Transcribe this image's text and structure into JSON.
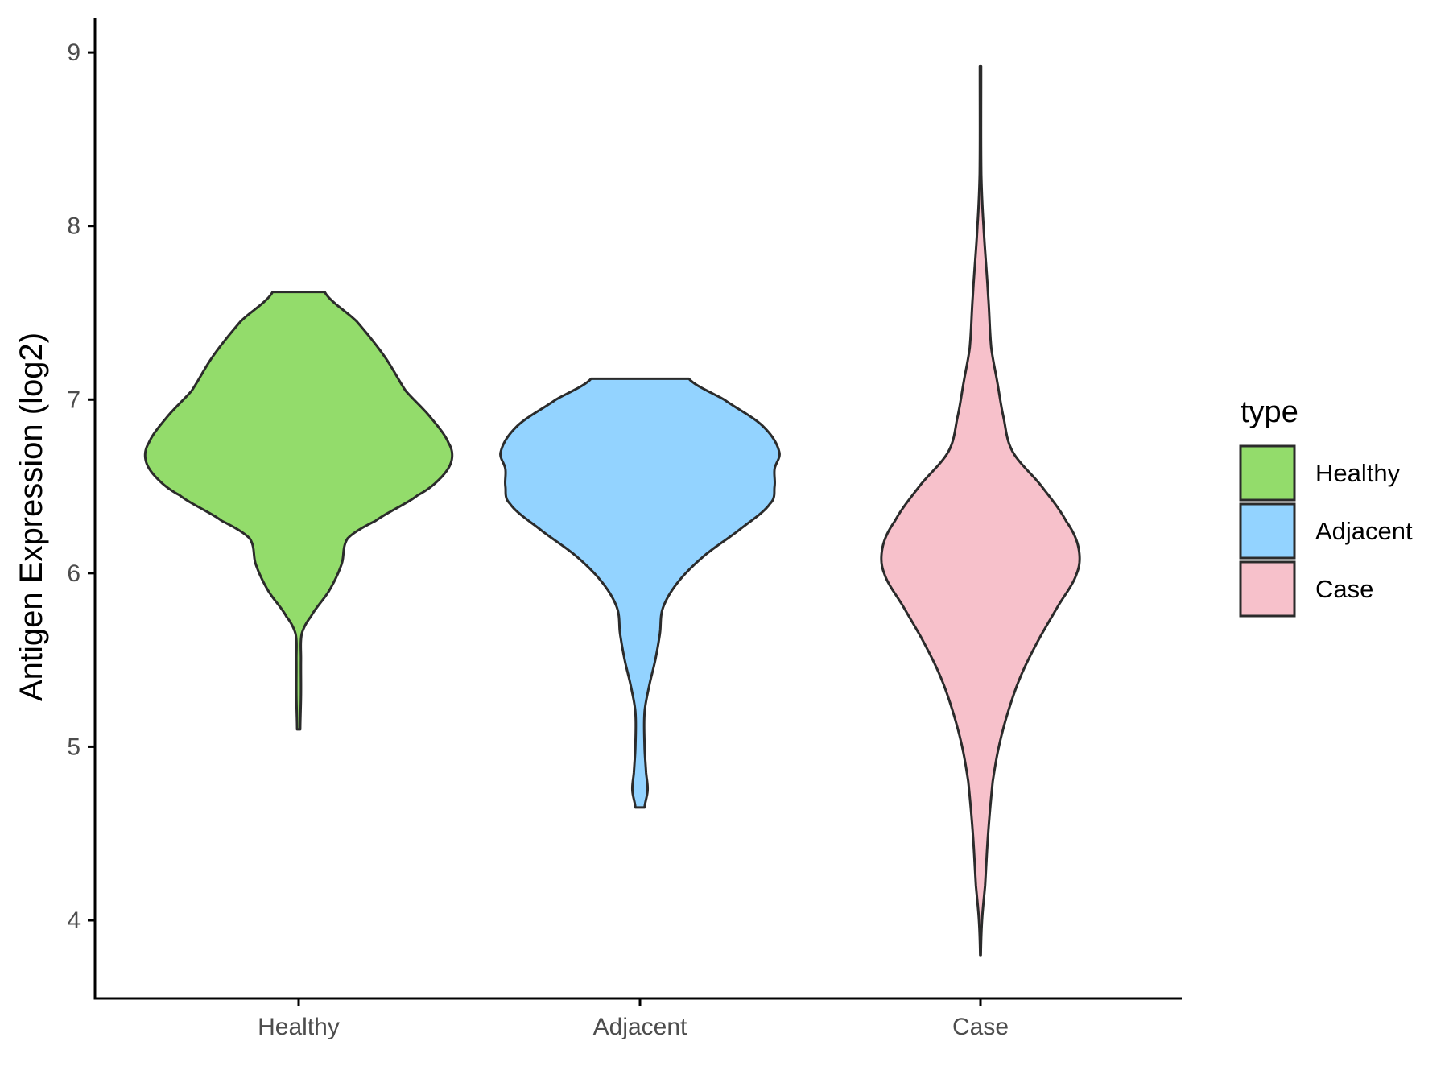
{
  "chart_data": {
    "type": "violin",
    "title": "",
    "xlabel": "",
    "ylabel": "Antigen Expression (log2)",
    "ylim": [
      3.55,
      9.2
    ],
    "y_ticks": [
      4,
      5,
      6,
      7,
      8,
      9
    ],
    "y_tick_labels": [
      "4",
      "5",
      "6",
      "7",
      "8",
      "9"
    ],
    "categories": [
      "Healthy",
      "Adjacent",
      "Case"
    ],
    "grid": false,
    "legend": {
      "title": "type",
      "placement": "right",
      "entries": [
        "Healthy",
        "Adjacent",
        "Case"
      ]
    },
    "colors": {
      "Healthy": "#93dc6b",
      "Adjacent": "#93d3ff",
      "Case": "#f7c1cb",
      "outline": "#2b2b2b",
      "axis": "#000000"
    },
    "series": [
      {
        "category": "Healthy",
        "min": 5.1,
        "max": 7.62,
        "density_profile": [
          [
            5.1,
            0.01
          ],
          [
            5.3,
            0.015
          ],
          [
            5.5,
            0.015
          ],
          [
            5.65,
            0.02
          ],
          [
            5.75,
            0.08
          ],
          [
            5.9,
            0.2
          ],
          [
            6.05,
            0.28
          ],
          [
            6.2,
            0.32
          ],
          [
            6.3,
            0.5
          ],
          [
            6.45,
            0.78
          ],
          [
            6.55,
            0.93
          ],
          [
            6.65,
            1.0
          ],
          [
            6.75,
            0.98
          ],
          [
            6.9,
            0.86
          ],
          [
            7.05,
            0.7
          ],
          [
            7.25,
            0.56
          ],
          [
            7.45,
            0.38
          ],
          [
            7.62,
            0.17
          ]
        ]
      },
      {
        "category": "Adjacent",
        "min": 4.65,
        "max": 7.12,
        "density_profile": [
          [
            4.65,
            0.03
          ],
          [
            4.75,
            0.05
          ],
          [
            4.85,
            0.04
          ],
          [
            5.0,
            0.03
          ],
          [
            5.2,
            0.03
          ],
          [
            5.35,
            0.06
          ],
          [
            5.5,
            0.1
          ],
          [
            5.65,
            0.13
          ],
          [
            5.8,
            0.15
          ],
          [
            5.95,
            0.25
          ],
          [
            6.1,
            0.42
          ],
          [
            6.25,
            0.65
          ],
          [
            6.4,
            0.85
          ],
          [
            6.5,
            0.88
          ],
          [
            6.6,
            0.88
          ],
          [
            6.7,
            0.91
          ],
          [
            6.85,
            0.8
          ],
          [
            7.0,
            0.55
          ],
          [
            7.12,
            0.32
          ]
        ]
      },
      {
        "category": "Case",
        "min": 3.8,
        "max": 8.92,
        "density_profile": [
          [
            3.8,
            0.002
          ],
          [
            4.0,
            0.01
          ],
          [
            4.2,
            0.03
          ],
          [
            4.5,
            0.05
          ],
          [
            4.8,
            0.08
          ],
          [
            5.0,
            0.12
          ],
          [
            5.2,
            0.18
          ],
          [
            5.4,
            0.26
          ],
          [
            5.6,
            0.37
          ],
          [
            5.8,
            0.5
          ],
          [
            6.0,
            0.63
          ],
          [
            6.15,
            0.64
          ],
          [
            6.3,
            0.56
          ],
          [
            6.5,
            0.4
          ],
          [
            6.7,
            0.21
          ],
          [
            6.9,
            0.15
          ],
          [
            7.1,
            0.11
          ],
          [
            7.3,
            0.07
          ],
          [
            7.6,
            0.05
          ],
          [
            8.0,
            0.02
          ],
          [
            8.3,
            0.005
          ],
          [
            8.92,
            0.004
          ]
        ]
      }
    ]
  }
}
